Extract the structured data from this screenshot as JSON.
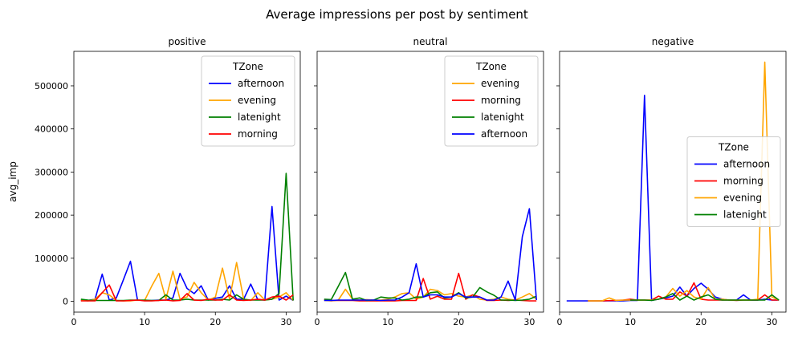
{
  "figure_title": "Average impressions per post by sentiment",
  "chart_data": [
    {
      "type": "line",
      "title": "positive",
      "xlabel": "",
      "ylabel": "avg_imp",
      "xlim": [
        0,
        32
      ],
      "ylim": [
        -25000,
        580000
      ],
      "x_ticks": [
        0,
        10,
        20,
        30
      ],
      "y_ticks": [
        0,
        100000,
        200000,
        300000,
        400000,
        500000
      ],
      "legend": {
        "title": "TZone",
        "position": "upper right"
      },
      "series": [
        {
          "name": "afternoon",
          "color": "#0000ff",
          "x": [
            1,
            2,
            3,
            4,
            5,
            6,
            7,
            8,
            9,
            10,
            11,
            12,
            13,
            14,
            15,
            16,
            17,
            18,
            19,
            20,
            21,
            22,
            23,
            24,
            25,
            26,
            27,
            28,
            29,
            30,
            31
          ],
          "y": [
            2000,
            2000,
            5000,
            63000,
            3000,
            8000,
            50000,
            93000,
            3000,
            2000,
            2000,
            3000,
            3000,
            8000,
            65000,
            30000,
            18000,
            36000,
            3000,
            7000,
            10000,
            36000,
            5000,
            5000,
            40000,
            4000,
            3000,
            220000,
            3000,
            12000,
            2000
          ]
        },
        {
          "name": "evening",
          "color": "#ffa500",
          "x": [
            1,
            2,
            3,
            4,
            5,
            6,
            7,
            8,
            9,
            10,
            11,
            12,
            13,
            14,
            15,
            16,
            17,
            18,
            19,
            20,
            21,
            22,
            23,
            24,
            25,
            26,
            27,
            28,
            29,
            30,
            31
          ],
          "y": [
            3000,
            1000,
            5000,
            20000,
            15000,
            2000,
            1000,
            1000,
            3000,
            2000,
            35000,
            65000,
            5000,
            70000,
            5000,
            10000,
            44000,
            20000,
            3000,
            10000,
            77000,
            5000,
            90000,
            5000,
            2000,
            20000,
            3000,
            5000,
            10000,
            20000,
            2000
          ]
        },
        {
          "name": "latenight",
          "color": "#008000",
          "x": [
            1,
            2,
            3,
            4,
            5,
            6,
            7,
            8,
            9,
            10,
            11,
            12,
            13,
            14,
            15,
            16,
            17,
            18,
            19,
            20,
            21,
            22,
            23,
            24,
            25,
            26,
            27,
            28,
            29,
            30,
            31
          ],
          "y": [
            5000,
            3000,
            2000,
            2000,
            2000,
            2000,
            2000,
            3000,
            3000,
            3000,
            2000,
            2000,
            15000,
            3000,
            3000,
            5000,
            3000,
            3000,
            3000,
            3000,
            5000,
            3000,
            15000,
            5000,
            3000,
            3000,
            3000,
            5000,
            18000,
            297000,
            2000
          ]
        },
        {
          "name": "morning",
          "color": "#ff0000",
          "x": [
            1,
            2,
            3,
            4,
            5,
            6,
            7,
            8,
            9,
            10,
            11,
            12,
            13,
            14,
            15,
            16,
            17,
            18,
            19,
            20,
            21,
            22,
            23,
            24,
            25,
            26,
            27,
            28,
            29,
            30,
            31
          ],
          "y": [
            1000,
            1000,
            1000,
            20000,
            38000,
            1000,
            1000,
            2000,
            3000,
            1000,
            1000,
            2000,
            3000,
            1000,
            2000,
            18000,
            3000,
            2000,
            5000,
            3000,
            3000,
            15000,
            3000,
            2000,
            3000,
            5000,
            3000,
            10000,
            12000,
            3000,
            15000
          ]
        }
      ]
    },
    {
      "type": "line",
      "title": "neutral",
      "xlabel": "",
      "ylabel": "",
      "xlim": [
        0,
        32
      ],
      "ylim": [
        -25000,
        580000
      ],
      "x_ticks": [
        0,
        10,
        20,
        30
      ],
      "y_ticks": [
        0,
        100000,
        200000,
        300000,
        400000,
        500000
      ],
      "legend": {
        "title": "TZone",
        "position": "upper right"
      },
      "series": [
        {
          "name": "evening",
          "color": "#ffa500",
          "x": [
            1,
            2,
            3,
            4,
            5,
            6,
            7,
            8,
            9,
            10,
            11,
            12,
            13,
            14,
            15,
            16,
            17,
            18,
            19,
            20,
            21,
            22,
            23,
            24,
            25,
            26,
            27,
            28,
            29,
            30,
            31
          ],
          "y": [
            2000,
            1000,
            3000,
            28000,
            5000,
            3000,
            4000,
            3000,
            3000,
            5000,
            10000,
            18000,
            20000,
            5000,
            10000,
            28000,
            25000,
            15000,
            18000,
            12000,
            10000,
            15000,
            5000,
            3000,
            5000,
            10000,
            5000,
            3000,
            10000,
            18000,
            5000
          ]
        },
        {
          "name": "morning",
          "color": "#ff0000",
          "x": [
            1,
            2,
            3,
            4,
            5,
            6,
            7,
            8,
            9,
            10,
            11,
            12,
            13,
            14,
            15,
            16,
            17,
            18,
            19,
            20,
            21,
            22,
            23,
            24,
            25,
            26,
            27,
            28,
            29,
            30,
            31
          ],
          "y": [
            4000,
            2000,
            2000,
            2000,
            2000,
            1000,
            1000,
            1000,
            1000,
            1000,
            1000,
            2000,
            2000,
            2000,
            53000,
            5000,
            12000,
            5000,
            5000,
            65000,
            5000,
            15000,
            10000,
            2000,
            2000,
            3000,
            2000,
            3000,
            2000,
            1000,
            1000
          ]
        },
        {
          "name": "latenight",
          "color": "#008000",
          "x": [
            1,
            2,
            3,
            4,
            5,
            6,
            7,
            8,
            9,
            10,
            11,
            12,
            13,
            14,
            15,
            16,
            17,
            18,
            19,
            20,
            21,
            22,
            23,
            24,
            25,
            26,
            27,
            28,
            29,
            30,
            31
          ],
          "y": [
            5000,
            4000,
            35000,
            67000,
            5000,
            8000,
            2000,
            3000,
            10000,
            8000,
            8000,
            3000,
            5000,
            10000,
            10000,
            20000,
            22000,
            8000,
            10000,
            20000,
            8000,
            10000,
            32000,
            22000,
            14000,
            3000,
            3000,
            2000,
            3000,
            5000,
            12000
          ]
        },
        {
          "name": "afternoon",
          "color": "#0000ff",
          "x": [
            1,
            2,
            3,
            4,
            5,
            6,
            7,
            8,
            9,
            10,
            11,
            12,
            13,
            14,
            15,
            16,
            17,
            18,
            19,
            20,
            21,
            22,
            23,
            24,
            25,
            26,
            27,
            28,
            29,
            30,
            31
          ],
          "y": [
            2000,
            2000,
            3000,
            3000,
            3000,
            3000,
            3000,
            3000,
            2000,
            3000,
            3000,
            10000,
            20000,
            87000,
            10000,
            15000,
            15000,
            10000,
            10000,
            18000,
            10000,
            10000,
            10000,
            3000,
            3000,
            10000,
            47000,
            3000,
            150000,
            215000,
            3000
          ]
        }
      ]
    },
    {
      "type": "line",
      "title": "negative",
      "xlabel": "",
      "ylabel": "",
      "xlim": [
        0,
        32
      ],
      "ylim": [
        -25000,
        580000
      ],
      "x_ticks": [
        0,
        10,
        20,
        30
      ],
      "y_ticks": [
        0,
        100000,
        200000,
        300000,
        400000,
        500000
      ],
      "legend": {
        "title": "TZone",
        "position": "center right"
      },
      "series": [
        {
          "name": "afternoon",
          "color": "#0000ff",
          "x": [
            1,
            2,
            3,
            4,
            5,
            6,
            7,
            8,
            9,
            10,
            11,
            12,
            13,
            14,
            15,
            16,
            17,
            18,
            19,
            20,
            21,
            22,
            23,
            24,
            25,
            26,
            27,
            28,
            29,
            30,
            31
          ],
          "y": [
            1000,
            1000,
            1000,
            1000,
            1000,
            1000,
            1000,
            1000,
            1000,
            2000,
            2000,
            478000,
            2000,
            5000,
            8000,
            12000,
            33000,
            12000,
            30000,
            42000,
            28000,
            10000,
            5000,
            3000,
            3000,
            15000,
            3000,
            3000,
            5000,
            3000,
            3000
          ]
        },
        {
          "name": "morning",
          "color": "#ff0000",
          "x": [
            4,
            5,
            6,
            9,
            10,
            11,
            12,
            13,
            14,
            15,
            16,
            17,
            18,
            19,
            20,
            21,
            22,
            23,
            24,
            25,
            26,
            27,
            28,
            29,
            30,
            31
          ],
          "y": [
            1000,
            1000,
            1000,
            3000,
            5000,
            3000,
            3000,
            3000,
            12000,
            5000,
            5000,
            22000,
            12000,
            43000,
            5000,
            3000,
            3000,
            3000,
            3000,
            2000,
            3000,
            3000,
            3000,
            15000,
            3000,
            3000
          ]
        },
        {
          "name": "evening",
          "color": "#ffa500",
          "x": [
            4,
            5,
            6,
            7,
            8,
            9,
            10,
            11,
            12,
            13,
            14,
            15,
            16,
            17,
            18,
            19,
            20,
            21,
            22,
            23,
            24,
            25,
            26,
            27,
            28,
            29,
            30,
            31
          ],
          "y": [
            1000,
            1000,
            1000,
            8000,
            2000,
            3000,
            3000,
            3000,
            3000,
            3000,
            5000,
            10000,
            30000,
            12000,
            25000,
            10000,
            5000,
            32000,
            5000,
            5000,
            3000,
            3000,
            3000,
            3000,
            5000,
            555000,
            10000,
            3000
          ]
        },
        {
          "name": "latenight",
          "color": "#008000",
          "x": [
            10,
            11,
            12,
            13,
            14,
            15,
            16,
            17,
            18,
            19,
            20,
            21,
            22,
            23,
            24,
            25,
            26,
            27,
            28,
            29,
            30,
            31
          ],
          "y": [
            3000,
            3000,
            3000,
            2000,
            5000,
            10000,
            18000,
            3000,
            12000,
            3000,
            10000,
            15000,
            5000,
            3000,
            3000,
            3000,
            3000,
            3000,
            3000,
            3000,
            15000,
            3000
          ]
        }
      ]
    }
  ]
}
